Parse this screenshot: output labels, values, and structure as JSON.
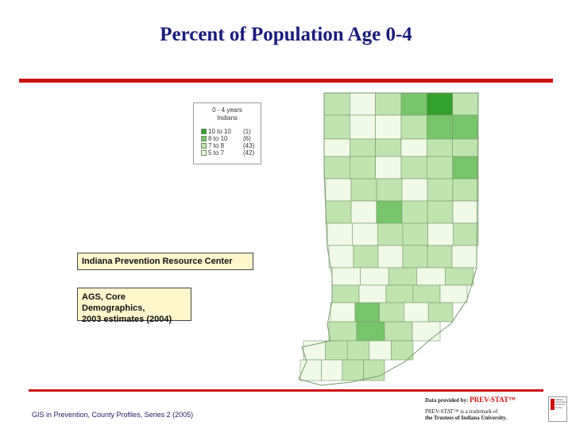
{
  "title": "Percent of Population Age 0-4",
  "legend": {
    "title_line1": "0 - 4 years",
    "title_line2": "Indians",
    "items": [
      {
        "range": "10 to 10",
        "count": "(1)",
        "color": "#33a02c"
      },
      {
        "range": "8 to 10",
        "count": "(6)",
        "color": "#78c46a"
      },
      {
        "range": "7 to 8",
        "count": "(43)",
        "color": "#bfe4b0"
      },
      {
        "range": "5 to 7",
        "count": "(42)",
        "color": "#f0fae6"
      }
    ]
  },
  "source_box": {
    "text": "Indiana Prevention Resource Center"
  },
  "data_box": {
    "line1": "AGS, Core Demographics,",
    "line2": "2003 estimates (2004)"
  },
  "footer": {
    "text": "GIS in Prevention, County Profiles, Series 2 (2005)"
  },
  "credit": {
    "provided_prefix": "Data provided by: ",
    "provided_brand": "PREV-STAT™",
    "trademark_line1": "PREV-STAT™ is a trademark of",
    "trademark_line2": "the Trustees of Indiana University."
  },
  "logo": {
    "text": "Indiana Prevention Resource Center"
  },
  "map_colors": {
    "outline": "#7a9a70",
    "classes": [
      "#33a02c",
      "#78c46a",
      "#bfe4b0",
      "#f0fae6"
    ]
  }
}
